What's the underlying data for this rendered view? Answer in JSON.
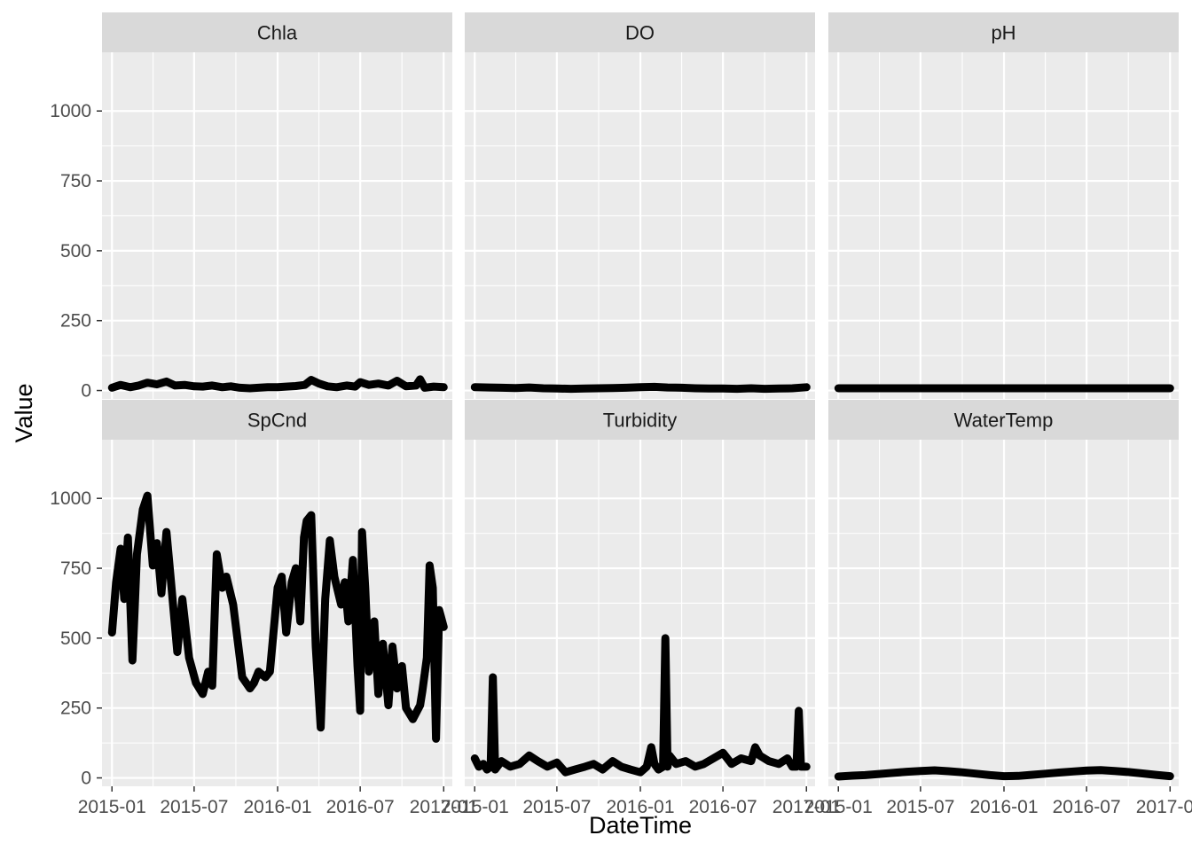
{
  "chart_data": {
    "type": "line",
    "xlabel": "DateTime",
    "ylabel": "Value",
    "ylim": [
      -30,
      1210
    ],
    "yticks": [
      0,
      250,
      500,
      750,
      1000
    ],
    "xlim": [
      "2014-12-10",
      "2017-01-20"
    ],
    "xticks": [
      {
        "label": "2015-01",
        "date": "2015-01-01"
      },
      {
        "label": "2015-07",
        "date": "2015-07-01"
      },
      {
        "label": "2016-01",
        "date": "2016-01-01"
      },
      {
        "label": "2016-07",
        "date": "2016-07-01"
      },
      {
        "label": "2017-01",
        "date": "2017-01-01"
      }
    ],
    "facet_layout": "3 columns x 2 rows, shared axes",
    "grid": true,
    "series_color": "#000000",
    "panel_background": "#ebebeb",
    "strip_background": "#d9d9d9",
    "panels": [
      {
        "name": "Chla",
        "x": [
          "2015-01-01",
          "2015-01-20",
          "2015-02-10",
          "2015-03-01",
          "2015-03-20",
          "2015-04-10",
          "2015-05-01",
          "2015-05-20",
          "2015-06-10",
          "2015-07-01",
          "2015-07-20",
          "2015-08-10",
          "2015-09-01",
          "2015-09-20",
          "2015-10-10",
          "2015-11-01",
          "2015-11-20",
          "2015-12-10",
          "2016-01-01",
          "2016-01-20",
          "2016-02-10",
          "2016-03-01",
          "2016-03-15",
          "2016-04-01",
          "2016-04-20",
          "2016-05-10",
          "2016-06-01",
          "2016-06-20",
          "2016-07-01",
          "2016-07-20",
          "2016-08-10",
          "2016-09-01",
          "2016-09-20",
          "2016-10-10",
          "2016-11-01",
          "2016-11-10",
          "2016-11-20",
          "2016-12-10",
          "2017-01-01"
        ],
        "y": [
          10,
          20,
          12,
          18,
          28,
          22,
          32,
          18,
          20,
          15,
          14,
          18,
          12,
          15,
          10,
          8,
          10,
          12,
          12,
          14,
          16,
          20,
          38,
          25,
          15,
          12,
          18,
          14,
          30,
          20,
          25,
          18,
          35,
          15,
          18,
          40,
          10,
          14,
          12
        ]
      },
      {
        "name": "DO",
        "x": [
          "2015-01-01",
          "2015-02-01",
          "2015-03-01",
          "2015-04-01",
          "2015-05-01",
          "2015-06-01",
          "2015-07-01",
          "2015-08-01",
          "2015-09-01",
          "2015-10-01",
          "2015-11-01",
          "2015-12-01",
          "2016-01-01",
          "2016-02-01",
          "2016-03-01",
          "2016-04-01",
          "2016-05-01",
          "2016-06-01",
          "2016-07-01",
          "2016-08-01",
          "2016-09-01",
          "2016-10-01",
          "2016-11-01",
          "2016-12-01",
          "2017-01-01"
        ],
        "y": [
          12,
          11,
          10,
          9,
          11,
          8,
          7,
          6,
          7,
          8,
          9,
          10,
          12,
          13,
          11,
          10,
          8,
          7,
          7,
          6,
          8,
          6,
          7,
          8,
          12
        ]
      },
      {
        "name": "pH",
        "x": [
          "2015-01-01",
          "2015-04-01",
          "2015-07-01",
          "2015-10-01",
          "2016-01-01",
          "2016-04-01",
          "2016-07-01",
          "2016-10-01",
          "2017-01-01"
        ],
        "y": [
          8,
          8,
          8,
          8,
          8,
          8,
          8,
          8,
          8
        ]
      },
      {
        "name": "SpCnd",
        "x": [
          "2015-01-01",
          "2015-01-10",
          "2015-01-20",
          "2015-01-28",
          "2015-02-05",
          "2015-02-15",
          "2015-02-20",
          "2015-02-25",
          "2015-03-10",
          "2015-03-20",
          "2015-04-01",
          "2015-04-10",
          "2015-04-20",
          "2015-05-01",
          "2015-05-10",
          "2015-05-25",
          "2015-06-05",
          "2015-06-20",
          "2015-07-05",
          "2015-07-20",
          "2015-08-01",
          "2015-08-10",
          "2015-08-20",
          "2015-09-01",
          "2015-09-10",
          "2015-09-25",
          "2015-10-15",
          "2015-11-01",
          "2015-11-10",
          "2015-11-20",
          "2015-12-05",
          "2015-12-15",
          "2016-01-01",
          "2016-01-10",
          "2016-01-20",
          "2016-02-01",
          "2016-02-10",
          "2016-02-20",
          "2016-02-28",
          "2016-03-05",
          "2016-03-15",
          "2016-03-25",
          "2016-04-05",
          "2016-04-15",
          "2016-04-25",
          "2016-05-05",
          "2016-05-20",
          "2016-05-28",
          "2016-06-05",
          "2016-06-15",
          "2016-06-25",
          "2016-07-01",
          "2016-07-05",
          "2016-07-12",
          "2016-07-20",
          "2016-08-01",
          "2016-08-10",
          "2016-08-20",
          "2016-09-01",
          "2016-09-10",
          "2016-09-20",
          "2016-10-01",
          "2016-10-10",
          "2016-10-25",
          "2016-11-10",
          "2016-11-15",
          "2016-11-25",
          "2016-12-01",
          "2016-12-08",
          "2016-12-15",
          "2016-12-22",
          "2017-01-01"
        ],
        "y": [
          520,
          700,
          820,
          640,
          860,
          420,
          600,
          800,
          960,
          1010,
          760,
          840,
          660,
          880,
          720,
          450,
          640,
          430,
          340,
          300,
          380,
          330,
          800,
          680,
          720,
          620,
          360,
          320,
          340,
          380,
          360,
          380,
          680,
          720,
          520,
          700,
          750,
          560,
          860,
          920,
          940,
          470,
          180,
          640,
          850,
          720,
          620,
          700,
          560,
          780,
          400,
          240,
          880,
          680,
          380,
          560,
          300,
          480,
          260,
          470,
          320,
          400,
          250,
          210,
          260,
          310,
          430,
          760,
          680,
          140,
          600,
          540
        ]
      },
      {
        "name": "Turbidity",
        "x": [
          "2015-01-01",
          "2015-01-10",
          "2015-01-20",
          "2015-01-28",
          "2015-02-05",
          "2015-02-10",
          "2015-02-15",
          "2015-03-01",
          "2015-03-20",
          "2015-04-10",
          "2015-05-01",
          "2015-05-20",
          "2015-06-10",
          "2015-07-01",
          "2015-07-20",
          "2015-08-10",
          "2015-09-01",
          "2015-09-20",
          "2015-10-10",
          "2015-11-01",
          "2015-11-20",
          "2015-12-10",
          "2016-01-01",
          "2016-01-15",
          "2016-01-25",
          "2016-02-01",
          "2016-02-10",
          "2016-02-20",
          "2016-02-25",
          "2016-03-01",
          "2016-03-05",
          "2016-03-20",
          "2016-04-10",
          "2016-05-01",
          "2016-05-20",
          "2016-06-10",
          "2016-07-01",
          "2016-07-20",
          "2016-08-10",
          "2016-09-01",
          "2016-09-10",
          "2016-09-20",
          "2016-10-10",
          "2016-11-01",
          "2016-11-20",
          "2016-12-01",
          "2016-12-10",
          "2016-12-15",
          "2016-12-20",
          "2017-01-01"
        ],
        "y": [
          70,
          40,
          50,
          30,
          40,
          360,
          30,
          60,
          40,
          50,
          80,
          60,
          40,
          55,
          20,
          30,
          40,
          50,
          30,
          60,
          40,
          30,
          20,
          40,
          110,
          50,
          30,
          40,
          500,
          40,
          80,
          50,
          60,
          40,
          50,
          70,
          90,
          50,
          70,
          60,
          110,
          80,
          60,
          50,
          70,
          40,
          40,
          240,
          40,
          40
        ]
      },
      {
        "name": "WaterTemp",
        "x": [
          "2015-01-01",
          "2015-02-01",
          "2015-03-01",
          "2015-04-01",
          "2015-05-01",
          "2015-06-01",
          "2015-07-01",
          "2015-08-01",
          "2015-09-01",
          "2015-10-01",
          "2015-11-01",
          "2015-12-01",
          "2016-01-01",
          "2016-02-01",
          "2016-03-01",
          "2016-04-01",
          "2016-05-01",
          "2016-06-01",
          "2016-07-01",
          "2016-08-01",
          "2016-09-01",
          "2016-10-01",
          "2016-11-01",
          "2016-12-01",
          "2017-01-01"
        ],
        "y": [
          5,
          8,
          10,
          14,
          18,
          22,
          25,
          27,
          24,
          20,
          15,
          10,
          6,
          7,
          11,
          15,
          19,
          23,
          26,
          28,
          25,
          21,
          16,
          11,
          6
        ]
      }
    ]
  }
}
